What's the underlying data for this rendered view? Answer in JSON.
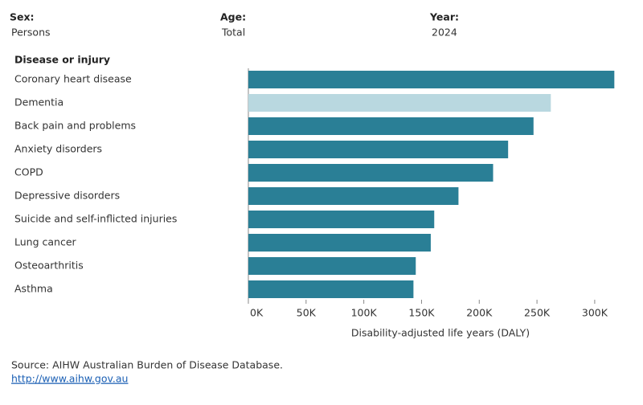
{
  "filters": [
    {
      "label": "Sex:",
      "value": "Persons"
    },
    {
      "label": "Age:",
      "value": "Total"
    },
    {
      "label": "Year:",
      "value": "2024"
    }
  ],
  "chart_data": {
    "type": "bar",
    "orientation": "horizontal",
    "category_header": "Disease or injury",
    "x_label": "Disability-adjusted life years (DALY)",
    "categories": [
      "Coronary heart disease",
      "Dementia",
      "Back pain and problems",
      "Anxiety disorders",
      "COPD",
      "Depressive disorders",
      "Suicide and self-inflicted injuries",
      "Lung cancer",
      "Osteoarthritis",
      "Asthma"
    ],
    "values": [
      317000,
      262000,
      247000,
      225000,
      212000,
      182000,
      161000,
      158000,
      145000,
      143000
    ],
    "colors": [
      "#2a7f96",
      "#b9d8e0",
      "#2a7f96",
      "#2a7f96",
      "#2a7f96",
      "#2a7f96",
      "#2a7f96",
      "#2a7f96",
      "#2a7f96",
      "#2a7f96"
    ],
    "xlim": [
      0,
      330000
    ],
    "xticks": [
      {
        "value": 0,
        "label": "0K"
      },
      {
        "value": 50000,
        "label": "50K"
      },
      {
        "value": 100000,
        "label": "100K"
      },
      {
        "value": 150000,
        "label": "150K"
      },
      {
        "value": 200000,
        "label": "200K"
      },
      {
        "value": 250000,
        "label": "250K"
      },
      {
        "value": 300000,
        "label": "300K"
      }
    ],
    "grid": false
  },
  "source": "Source: AIHW Australian Burden of Disease Database.",
  "link": "http://www.aihw.gov.au"
}
